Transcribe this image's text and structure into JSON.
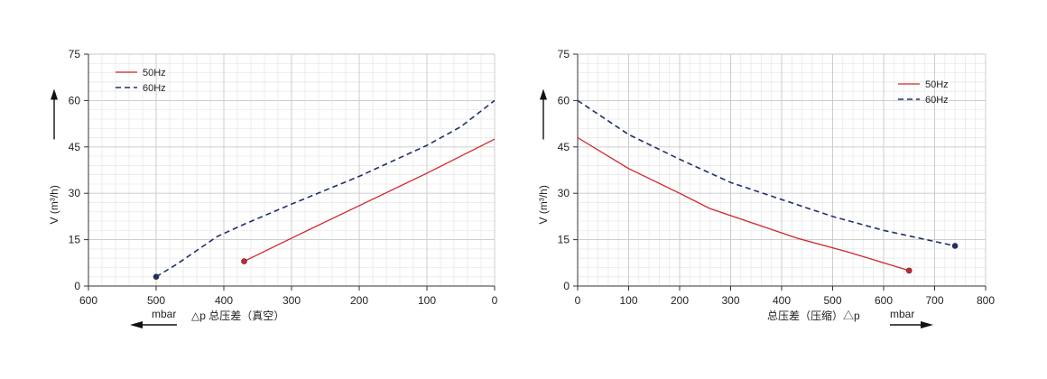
{
  "chart_data": [
    {
      "type": "line",
      "title": "",
      "xlabel": "△p 总压差（真空）",
      "xunit": "mbar",
      "ylabel": "V (m³/h)",
      "xlim": [
        600,
        0
      ],
      "ylim": [
        0,
        75
      ],
      "xticks": [
        600,
        500,
        400,
        300,
        200,
        100,
        0
      ],
      "yticks": [
        0,
        15,
        30,
        45,
        60,
        75
      ],
      "grid": true,
      "legend_position": "top-left",
      "series": [
        {
          "name": "50Hz",
          "color": "#d0242c",
          "dashed": false,
          "endpoint": "start",
          "points": [
            [
              370,
              8
            ],
            [
              300,
              15.5
            ],
            [
              200,
              26
            ],
            [
              100,
              36.5
            ],
            [
              0,
              47.5
            ]
          ]
        },
        {
          "name": "60Hz",
          "color": "#1d2f6e",
          "dashed": true,
          "endpoint": "start",
          "points": [
            [
              500,
              3
            ],
            [
              470,
              7
            ],
            [
              440,
              11.5
            ],
            [
              410,
              16
            ],
            [
              370,
              20
            ],
            [
              300,
              26.5
            ],
            [
              250,
              31
            ],
            [
              200,
              35.5
            ],
            [
              100,
              45.5
            ],
            [
              50,
              51.5
            ],
            [
              0,
              60
            ]
          ]
        }
      ]
    },
    {
      "type": "line",
      "title": "",
      "xlabel": "总压差（压缩）△p",
      "xunit": "mbar",
      "ylabel": "V (m³/h)",
      "xlim": [
        0,
        800
      ],
      "ylim": [
        0,
        75
      ],
      "xticks": [
        0,
        100,
        200,
        300,
        400,
        500,
        600,
        700,
        800
      ],
      "yticks": [
        0,
        15,
        30,
        45,
        60,
        75
      ],
      "grid": true,
      "legend_position": "top-right",
      "series": [
        {
          "name": "50Hz",
          "color": "#d0242c",
          "dashed": false,
          "endpoint": "end",
          "points": [
            [
              0,
              48
            ],
            [
              100,
              38
            ],
            [
              200,
              30
            ],
            [
              260,
              25
            ],
            [
              350,
              20
            ],
            [
              430,
              15.5
            ],
            [
              530,
              11
            ],
            [
              650,
              5
            ]
          ]
        },
        {
          "name": "60Hz",
          "color": "#1d2f6e",
          "dashed": true,
          "endpoint": "end",
          "points": [
            [
              0,
              60
            ],
            [
              100,
              49
            ],
            [
              200,
              41
            ],
            [
              300,
              33.5
            ],
            [
              400,
              28
            ],
            [
              500,
              22.5
            ],
            [
              600,
              18
            ],
            [
              740,
              13
            ]
          ]
        }
      ]
    }
  ]
}
